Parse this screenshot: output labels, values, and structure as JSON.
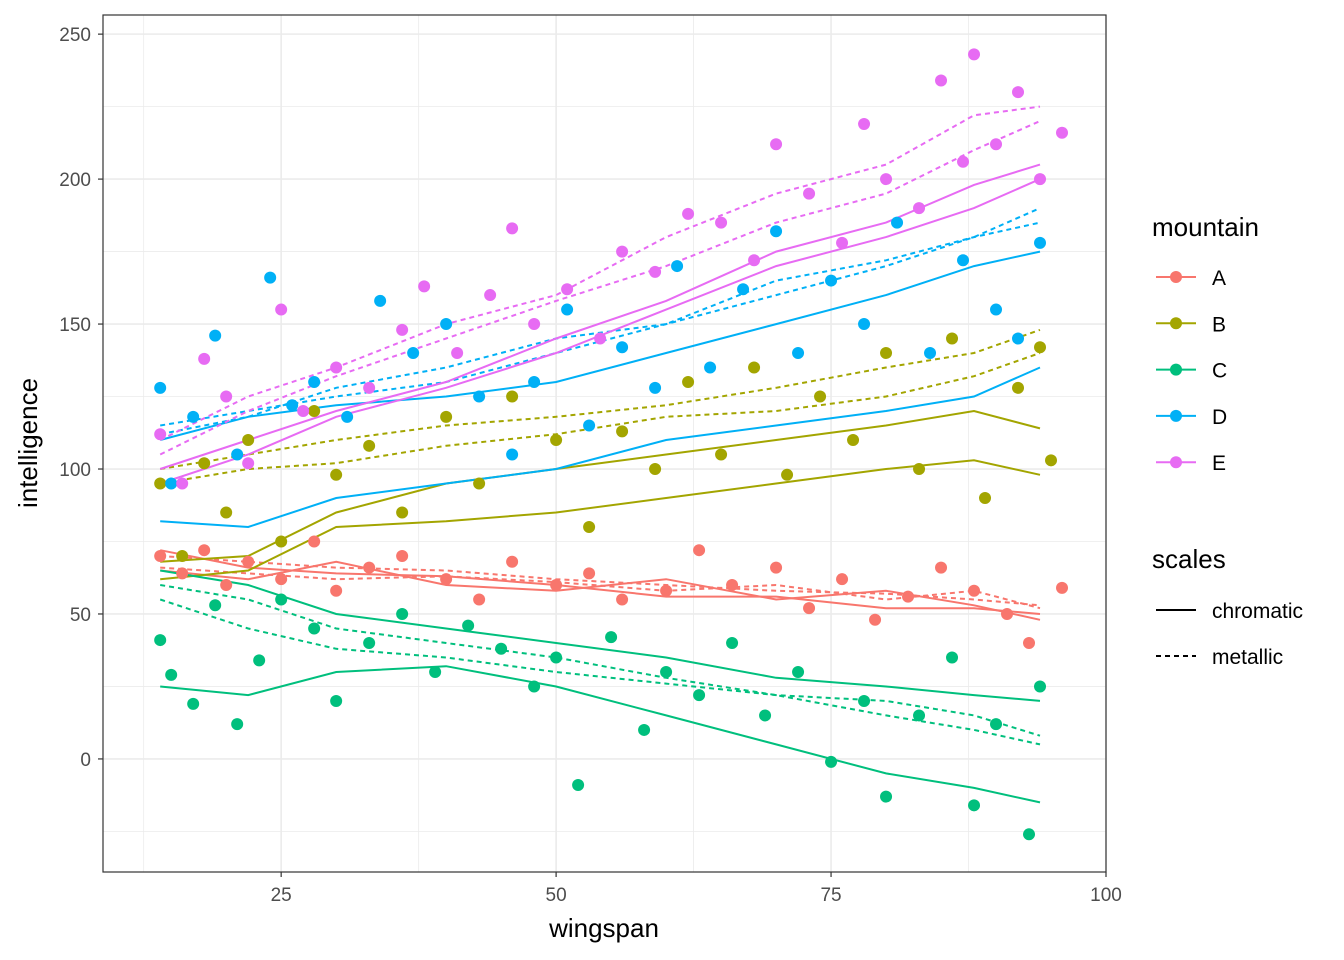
{
  "chart_data": {
    "type": "scatter",
    "xlabel": "wingspan",
    "ylabel": "intelligence",
    "xlim": [
      8.8,
      100
    ],
    "ylim": [
      -39,
      256.6
    ],
    "x_ticks": [
      25,
      50,
      75,
      100
    ],
    "y_ticks": [
      0,
      50,
      100,
      150,
      200,
      250
    ],
    "grid": true,
    "legend_placement": "right",
    "legends": [
      {
        "title": "mountain",
        "entries": [
          "A",
          "B",
          "C",
          "D",
          "E"
        ]
      },
      {
        "title": "scales",
        "entries": [
          "chromatic",
          "metallic"
        ]
      }
    ],
    "colors": {
      "A": "#F8766D",
      "B": "#A3A500",
      "C": "#00BF7D",
      "D": "#00B0F6",
      "E": "#E76BF3"
    },
    "line_x": [
      14,
      22,
      30,
      40,
      50,
      60,
      70,
      80,
      88,
      94
    ],
    "series": [
      {
        "name": "A",
        "points": [
          [
            14,
            70
          ],
          [
            16,
            64
          ],
          [
            18,
            72
          ],
          [
            20,
            60
          ],
          [
            22,
            68
          ],
          [
            25,
            62
          ],
          [
            28,
            75
          ],
          [
            30,
            58
          ],
          [
            33,
            66
          ],
          [
            36,
            70
          ],
          [
            40,
            62
          ],
          [
            43,
            55
          ],
          [
            46,
            68
          ],
          [
            50,
            60
          ],
          [
            53,
            64
          ],
          [
            56,
            55
          ],
          [
            60,
            58
          ],
          [
            63,
            72
          ],
          [
            66,
            60
          ],
          [
            70,
            66
          ],
          [
            73,
            52
          ],
          [
            76,
            62
          ],
          [
            79,
            48
          ],
          [
            82,
            56
          ],
          [
            85,
            66
          ],
          [
            88,
            58
          ],
          [
            91,
            50
          ],
          [
            93,
            40
          ],
          [
            96,
            59
          ]
        ],
        "lines": [
          {
            "scales": "chromatic",
            "y": [
              72,
              66,
              64,
              63,
              60,
              56,
              56,
              52,
              52,
              50
            ]
          },
          {
            "scales": "chromatic",
            "y": [
              65,
              62,
              68,
              60,
              58,
              62,
              55,
              58,
              53,
              48
            ]
          },
          {
            "scales": "metallic",
            "y": [
              70,
              68,
              66,
              65,
              62,
              60,
              58,
              57,
              55,
              53
            ]
          },
          {
            "scales": "metallic",
            "y": [
              66,
              64,
              62,
              63,
              61,
              58,
              60,
              55,
              58,
              52
            ]
          }
        ]
      },
      {
        "name": "B",
        "points": [
          [
            14,
            95
          ],
          [
            16,
            70
          ],
          [
            18,
            102
          ],
          [
            20,
            85
          ],
          [
            22,
            110
          ],
          [
            25,
            75
          ],
          [
            28,
            120
          ],
          [
            30,
            98
          ],
          [
            33,
            108
          ],
          [
            36,
            85
          ],
          [
            40,
            118
          ],
          [
            43,
            95
          ],
          [
            46,
            125
          ],
          [
            50,
            110
          ],
          [
            53,
            80
          ],
          [
            56,
            113
          ],
          [
            59,
            100
          ],
          [
            62,
            130
          ],
          [
            65,
            105
          ],
          [
            68,
            135
          ],
          [
            71,
            98
          ],
          [
            74,
            125
          ],
          [
            77,
            110
          ],
          [
            80,
            140
          ],
          [
            83,
            100
          ],
          [
            86,
            145
          ],
          [
            89,
            90
          ],
          [
            92,
            128
          ],
          [
            94,
            142
          ],
          [
            95,
            103
          ]
        ],
        "lines": [
          {
            "scales": "chromatic",
            "y": [
              62,
              65,
              80,
              82,
              85,
              90,
              95,
              100,
              103,
              98
            ]
          },
          {
            "scales": "chromatic",
            "y": [
              68,
              70,
              85,
              95,
              100,
              105,
              110,
              115,
              120,
              114
            ]
          },
          {
            "scales": "metallic",
            "y": [
              100,
              105,
              110,
              115,
              118,
              122,
              128,
              135,
              140,
              148
            ]
          },
          {
            "scales": "metallic",
            "y": [
              95,
              100,
              102,
              108,
              112,
              118,
              120,
              125,
              132,
              140
            ]
          }
        ]
      },
      {
        "name": "C",
        "points": [
          [
            14,
            41
          ],
          [
            15,
            29
          ],
          [
            17,
            19
          ],
          [
            19,
            53
          ],
          [
            21,
            12
          ],
          [
            23,
            34
          ],
          [
            25,
            55
          ],
          [
            28,
            45
          ],
          [
            30,
            20
          ],
          [
            33,
            40
          ],
          [
            36,
            50
          ],
          [
            39,
            30
          ],
          [
            42,
            46
          ],
          [
            45,
            38
          ],
          [
            48,
            25
          ],
          [
            50,
            35
          ],
          [
            52,
            -9
          ],
          [
            55,
            42
          ],
          [
            58,
            10
          ],
          [
            60,
            30
          ],
          [
            63,
            22
          ],
          [
            66,
            40
          ],
          [
            69,
            15
          ],
          [
            72,
            30
          ],
          [
            75,
            -1
          ],
          [
            78,
            20
          ],
          [
            80,
            -13
          ],
          [
            83,
            15
          ],
          [
            86,
            35
          ],
          [
            88,
            -16
          ],
          [
            90,
            12
          ],
          [
            93,
            -26
          ],
          [
            94,
            25
          ]
        ],
        "lines": [
          {
            "scales": "chromatic",
            "y": [
              25,
              22,
              30,
              32,
              25,
              15,
              5,
              -5,
              -10,
              -15
            ]
          },
          {
            "scales": "chromatic",
            "y": [
              65,
              60,
              50,
              45,
              40,
              35,
              28,
              25,
              22,
              20
            ]
          },
          {
            "scales": "metallic",
            "y": [
              55,
              45,
              38,
              35,
              30,
              26,
              22,
              20,
              15,
              8
            ]
          },
          {
            "scales": "metallic",
            "y": [
              60,
              55,
              45,
              40,
              35,
              28,
              22,
              15,
              10,
              5
            ]
          }
        ]
      },
      {
        "name": "D",
        "points": [
          [
            14,
            128
          ],
          [
            15,
            95
          ],
          [
            17,
            118
          ],
          [
            19,
            146
          ],
          [
            21,
            105
          ],
          [
            24,
            166
          ],
          [
            26,
            122
          ],
          [
            28,
            130
          ],
          [
            31,
            118
          ],
          [
            34,
            158
          ],
          [
            37,
            140
          ],
          [
            40,
            150
          ],
          [
            43,
            125
          ],
          [
            46,
            105
          ],
          [
            48,
            130
          ],
          [
            51,
            155
          ],
          [
            53,
            115
          ],
          [
            56,
            142
          ],
          [
            59,
            128
          ],
          [
            61,
            170
          ],
          [
            64,
            135
          ],
          [
            67,
            162
          ],
          [
            70,
            182
          ],
          [
            72,
            140
          ],
          [
            75,
            165
          ],
          [
            78,
            150
          ],
          [
            81,
            185
          ],
          [
            84,
            140
          ],
          [
            87,
            172
          ],
          [
            90,
            155
          ],
          [
            92,
            145
          ],
          [
            94,
            178
          ]
        ],
        "lines": [
          {
            "scales": "chromatic",
            "y": [
              82,
              80,
              90,
              95,
              100,
              110,
              115,
              120,
              125,
              135
            ]
          },
          {
            "scales": "chromatic",
            "y": [
              110,
              118,
              122,
              125,
              130,
              140,
              150,
              160,
              170,
              175
            ]
          },
          {
            "scales": "metallic",
            "y": [
              115,
              120,
              125,
              130,
              140,
              150,
              160,
              170,
              180,
              190
            ]
          },
          {
            "scales": "metallic",
            "y": [
              112,
              118,
              128,
              135,
              145,
              150,
              165,
              172,
              180,
              185
            ]
          }
        ]
      },
      {
        "name": "E",
        "points": [
          [
            14,
            112
          ],
          [
            16,
            95
          ],
          [
            18,
            138
          ],
          [
            20,
            125
          ],
          [
            22,
            102
          ],
          [
            25,
            155
          ],
          [
            27,
            120
          ],
          [
            30,
            135
          ],
          [
            33,
            128
          ],
          [
            36,
            148
          ],
          [
            38,
            163
          ],
          [
            41,
            140
          ],
          [
            44,
            160
          ],
          [
            46,
            183
          ],
          [
            48,
            150
          ],
          [
            51,
            162
          ],
          [
            54,
            145
          ],
          [
            56,
            175
          ],
          [
            59,
            168
          ],
          [
            62,
            188
          ],
          [
            65,
            185
          ],
          [
            68,
            172
          ],
          [
            70,
            212
          ],
          [
            73,
            195
          ],
          [
            76,
            178
          ],
          [
            78,
            219
          ],
          [
            80,
            200
          ],
          [
            83,
            190
          ],
          [
            85,
            234
          ],
          [
            87,
            206
          ],
          [
            88,
            243
          ],
          [
            90,
            212
          ],
          [
            92,
            230
          ],
          [
            94,
            200
          ],
          [
            96,
            216
          ]
        ],
        "lines": [
          {
            "scales": "chromatic",
            "y": [
              95,
              105,
              118,
              128,
              140,
              155,
              170,
              180,
              190,
              200
            ]
          },
          {
            "scales": "chromatic",
            "y": [
              100,
              110,
              120,
              130,
              145,
              158,
              175,
              185,
              198,
              205
            ]
          },
          {
            "scales": "metallic",
            "y": [
              110,
              125,
              135,
              150,
              160,
              180,
              195,
              205,
              222,
              225
            ]
          },
          {
            "scales": "metallic",
            "y": [
              105,
              120,
              132,
              145,
              158,
              170,
              185,
              195,
              210,
              220
            ]
          }
        ]
      }
    ]
  }
}
